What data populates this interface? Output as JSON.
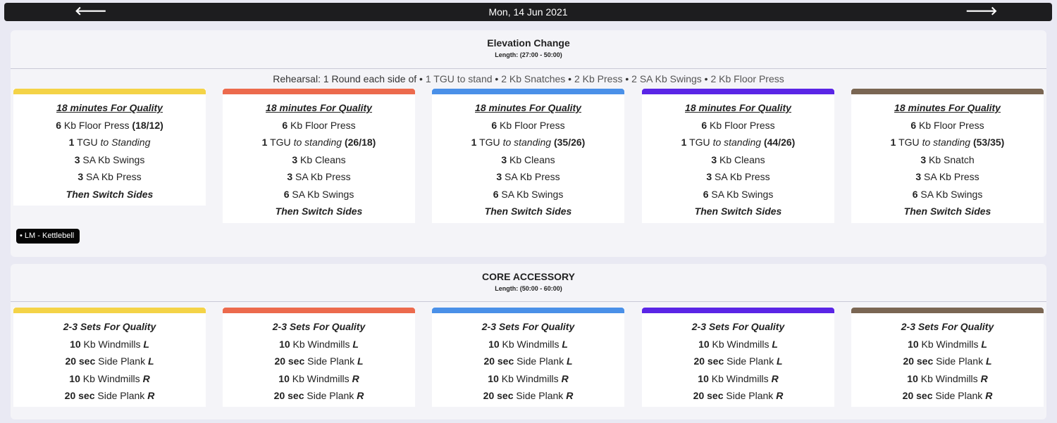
{
  "nav": {
    "date": "Mon, 14 Jun 2021",
    "prev_icon": "arrow-left-icon",
    "next_icon": "arrow-right-icon"
  },
  "colors": {
    "yellow": "#f4d347",
    "red": "#ec6a4d",
    "blue": "#4a90e8",
    "purple": "#5a25e6",
    "brown": "#7a6653"
  },
  "elevation": {
    "title": "Elevation Change",
    "length": "Length: (27:00 - 50:00)",
    "rehearsal": {
      "prefix": "Rehearsal: 1 Round each side of",
      "items": [
        "1 TGU to stand",
        "2 Kb Snatches",
        "2 Kb Press",
        "2 SA Kb Swings",
        "2 Kb Floor Press"
      ]
    },
    "tag": "LM - Kettlebell",
    "columns": [
      {
        "header": "18 minutes For Quality",
        "floor_num": "6",
        "floor_txt": "Kb Floor Press",
        "floor_w": "(18/12)",
        "tgu_num": "1",
        "tgu_txt": "TGU",
        "tgu_it": "to Standing",
        "tgu_w": "",
        "l3_num": "3",
        "l3_txt": "SA Kb Swings",
        "l4_num": "3",
        "l4_txt": "SA Kb Press",
        "l5_num": "",
        "l5_txt": "",
        "switch": "Then Switch Sides"
      },
      {
        "header": "18 minutes For Quality",
        "floor_num": "6",
        "floor_txt": "Kb Floor Press",
        "floor_w": "",
        "tgu_num": "1",
        "tgu_txt": "TGU",
        "tgu_it": "to standing",
        "tgu_w": "(26/18)",
        "l3_num": "3",
        "l3_txt": "Kb Cleans",
        "l4_num": "3",
        "l4_txt": "SA Kb Press",
        "l5_num": "6",
        "l5_txt": "SA Kb Swings",
        "switch": "Then Switch Sides"
      },
      {
        "header": "18 minutes For Quality",
        "floor_num": "6",
        "floor_txt": "Kb Floor Press",
        "floor_w": "",
        "tgu_num": "1",
        "tgu_txt": "TGU",
        "tgu_it": "to standing",
        "tgu_w": "(35/26)",
        "l3_num": "3",
        "l3_txt": "Kb Cleans",
        "l4_num": "3",
        "l4_txt": "SA Kb Press",
        "l5_num": "6",
        "l5_txt": "SA Kb Swings",
        "switch": "Then Switch Sides"
      },
      {
        "header": "18 minutes For Quality",
        "floor_num": "6",
        "floor_txt": "Kb Floor Press",
        "floor_w": "",
        "tgu_num": "1",
        "tgu_txt": "TGU",
        "tgu_it": "to standing",
        "tgu_w": "(44/26)",
        "l3_num": "3",
        "l3_txt": "Kb Cleans",
        "l4_num": "3",
        "l4_txt": "SA Kb Press",
        "l5_num": "6",
        "l5_txt": "SA Kb Swings",
        "switch": "Then Switch Sides"
      },
      {
        "header": "18 minutes For Quality",
        "floor_num": "6",
        "floor_txt": "Kb Floor Press",
        "floor_w": "",
        "tgu_num": "1",
        "tgu_txt": "TGU",
        "tgu_it": "to standing",
        "tgu_w": "(53/35)",
        "l3_num": "3",
        "l3_txt": "Kb Snatch",
        "l4_num": "3",
        "l4_txt": "SA Kb Press",
        "l5_num": "6",
        "l5_txt": "SA Kb Swings",
        "switch": "Then Switch Sides"
      }
    ]
  },
  "core": {
    "title": "CORE ACCESSORY",
    "length": "Length: (50:00 - 60:00)",
    "column": {
      "header": "2-3 Sets For Quality",
      "w_num": "10",
      "w_txt": "Kb Windmills",
      "p_num": "20 sec",
      "p_txt": "Side Plank",
      "left": "L",
      "right": "R"
    }
  }
}
